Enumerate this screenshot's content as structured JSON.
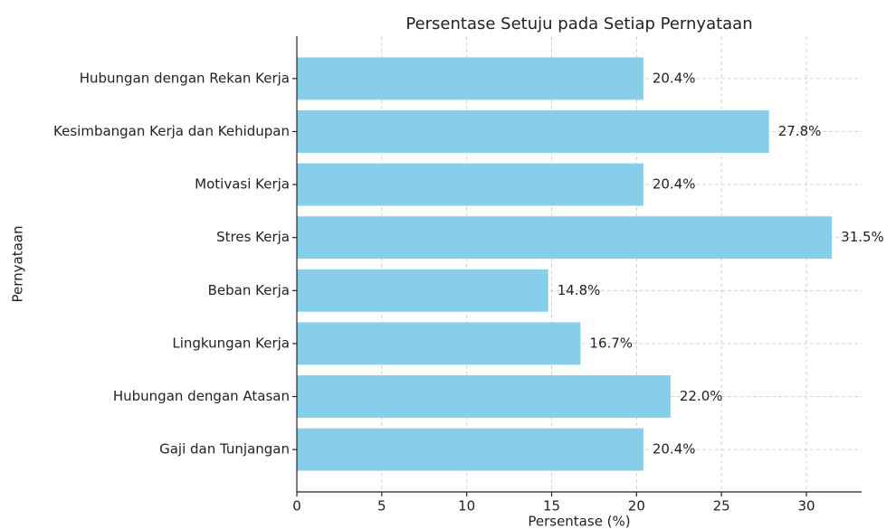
{
  "chart_data": {
    "type": "barh",
    "title": "Persentase Setuju pada Setiap Pernyataan",
    "x_label": "Persentase (%)",
    "y_label": "Pernyataan",
    "categories": [
      "Hubungan dengan Rekan Kerja",
      "Kesimbangan Kerja dan Kehidupan",
      "Motivasi Kerja",
      "Stres Kerja",
      "Beban Kerja",
      "Lingkungan Kerja",
      "Hubungan dengan Atasan",
      "Gaji dan Tunjangan"
    ],
    "values": [
      20.4,
      27.8,
      20.4,
      31.5,
      14.8,
      16.7,
      22.0,
      20.4
    ],
    "value_labels": [
      "20.4%",
      "27.8%",
      "20.4%",
      "31.5%",
      "14.8%",
      "16.7%",
      "22.0%",
      "20.4%"
    ],
    "color": "#87ceeb",
    "xlim": [
      0,
      33.25
    ],
    "xticks": [
      0,
      5,
      10,
      15,
      20,
      25,
      30
    ],
    "grid": true
  }
}
